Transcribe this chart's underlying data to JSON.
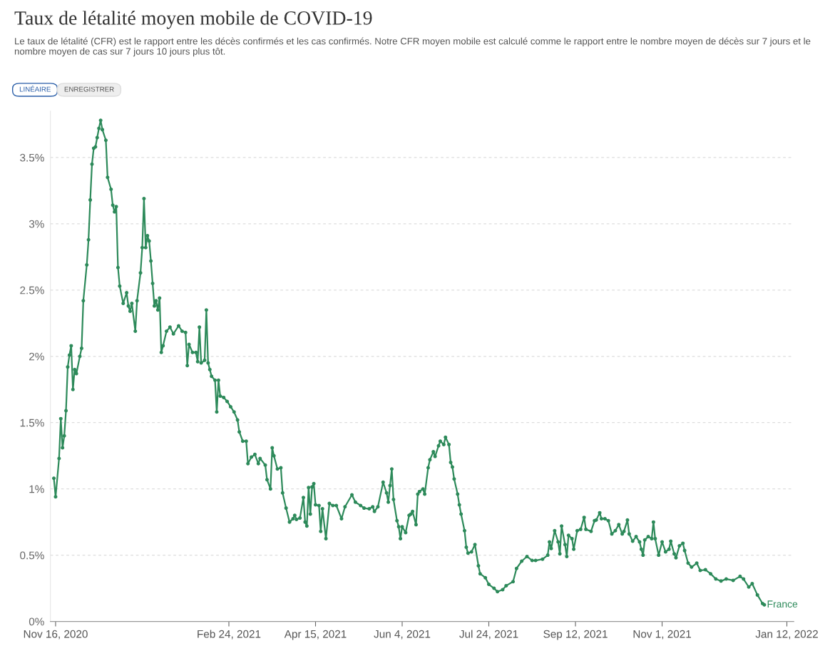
{
  "chart_data": {
    "type": "line",
    "title": "Taux de létalité moyen mobile de COVID-19",
    "subtitle": "Le taux de létalité (CFR) est le rapport entre les décès confirmés et les cas confirmés. Notre CFR moyen mobile est calculé comme le rapport entre le nombre moyen de décès sur 7 jours et le nombre moyen de cas sur 7 jours 10 jours plus tôt.",
    "annotations": [
      "LINÉAIRE",
      "ENREGISTRER"
    ],
    "xlim": [
      "2020-11-13",
      "2022-01-16"
    ],
    "xticks": [
      {
        "value": "2020-11-16",
        "label": "Nov 16, 2020"
      },
      {
        "value": "2021-02-24",
        "label": "Feb 24, 2021"
      },
      {
        "value": "2021-04-15",
        "label": "Apr 15, 2021"
      },
      {
        "value": "2021-06-04",
        "label": "Jun 4, 2021"
      },
      {
        "value": "2021-07-24",
        "label": "Jul 24, 2021"
      },
      {
        "value": "2021-09-12",
        "label": "Sep 12, 2021"
      },
      {
        "value": "2021-11-01",
        "label": "Nov 1, 2021"
      },
      {
        "value": "2022-01-12",
        "label": "Jan 12, 2022"
      }
    ],
    "ylim": [
      0,
      3.85
    ],
    "yticks": [
      {
        "value": 0,
        "label": "0%"
      },
      {
        "value": 0.5,
        "label": "0.5%"
      },
      {
        "value": 1,
        "label": "1%"
      },
      {
        "value": 1.5,
        "label": "1.5%"
      },
      {
        "value": 2,
        "label": "2%"
      },
      {
        "value": 2.5,
        "label": "2.5%"
      },
      {
        "value": 3,
        "label": "3%"
      },
      {
        "value": 3.5,
        "label": "3.5%"
      }
    ],
    "grid": "y",
    "legend": false,
    "marker": "circle",
    "line_style": "solid",
    "series": [
      {
        "name": "France",
        "color": "#2d8a5a",
        "x": [
          "2020-11-15",
          "2020-11-16",
          "2020-11-18",
          "2020-11-19",
          "2020-11-20",
          "2020-11-21",
          "2020-11-22",
          "2020-11-23",
          "2020-11-24",
          "2020-11-25",
          "2020-11-26",
          "2020-11-27",
          "2020-11-28",
          "2020-11-30",
          "2020-12-01",
          "2020-12-02",
          "2020-12-04",
          "2020-12-05",
          "2020-12-06",
          "2020-12-07",
          "2020-12-08",
          "2020-12-09",
          "2020-12-10",
          "2020-12-11",
          "2020-12-12",
          "2020-12-13",
          "2020-12-15",
          "2020-12-16",
          "2020-12-18",
          "2020-12-19",
          "2020-12-20",
          "2020-12-21",
          "2020-12-22",
          "2020-12-23",
          "2020-12-25",
          "2020-12-27",
          "2020-12-28",
          "2020-12-29",
          "2020-12-30",
          "2021-01-01",
          "2021-01-02",
          "2021-01-04",
          "2021-01-05",
          "2021-01-06",
          "2021-01-07",
          "2021-01-08",
          "2021-01-09",
          "2021-01-10",
          "2021-01-11",
          "2021-01-12",
          "2021-01-13",
          "2021-01-14",
          "2021-01-15",
          "2021-01-16",
          "2021-01-17",
          "2021-01-19",
          "2021-01-21",
          "2021-01-23",
          "2021-01-26",
          "2021-01-28",
          "2021-01-30",
          "2021-01-31",
          "2021-02-01",
          "2021-02-03",
          "2021-02-05",
          "2021-02-06",
          "2021-02-07",
          "2021-02-08",
          "2021-02-10",
          "2021-02-11",
          "2021-02-12",
          "2021-02-13",
          "2021-02-14",
          "2021-02-16",
          "2021-02-17",
          "2021-02-18",
          "2021-02-19",
          "2021-02-21",
          "2021-02-23",
          "2021-02-25",
          "2021-02-27",
          "2021-03-01",
          "2021-03-02",
          "2021-03-04",
          "2021-03-06",
          "2021-03-07",
          "2021-03-09",
          "2021-03-11",
          "2021-03-13",
          "2021-03-14",
          "2021-03-17",
          "2021-03-18",
          "2021-03-20",
          "2021-03-21",
          "2021-03-22",
          "2021-03-24",
          "2021-03-26",
          "2021-03-27",
          "2021-03-29",
          "2021-03-31",
          "2021-04-02",
          "2021-04-03",
          "2021-04-04",
          "2021-04-06",
          "2021-04-08",
          "2021-04-09",
          "2021-04-10",
          "2021-04-11",
          "2021-04-12",
          "2021-04-13",
          "2021-04-14",
          "2021-04-15",
          "2021-04-17",
          "2021-04-18",
          "2021-04-19",
          "2021-04-21",
          "2021-04-23",
          "2021-04-25",
          "2021-04-27",
          "2021-04-30",
          "2021-05-02",
          "2021-05-06",
          "2021-05-08",
          "2021-05-11",
          "2021-05-13",
          "2021-05-16",
          "2021-05-18",
          "2021-05-19",
          "2021-05-21",
          "2021-05-24",
          "2021-05-26",
          "2021-05-27",
          "2021-05-28",
          "2021-05-29",
          "2021-05-30",
          "2021-06-01",
          "2021-06-02",
          "2021-06-03",
          "2021-06-04",
          "2021-06-06",
          "2021-06-08",
          "2021-06-09",
          "2021-06-10",
          "2021-06-12",
          "2021-06-13",
          "2021-06-14",
          "2021-06-16",
          "2021-06-17",
          "2021-06-19",
          "2021-06-20",
          "2021-06-22",
          "2021-06-23",
          "2021-06-25",
          "2021-06-26",
          "2021-06-28",
          "2021-06-29",
          "2021-07-01",
          "2021-07-02",
          "2021-07-03",
          "2021-07-04",
          "2021-07-06",
          "2021-07-07",
          "2021-07-08",
          "2021-07-10",
          "2021-07-11",
          "2021-07-12",
          "2021-07-14",
          "2021-07-16",
          "2021-07-18",
          "2021-07-19",
          "2021-07-22",
          "2021-07-24",
          "2021-07-27",
          "2021-07-29",
          "2021-08-01",
          "2021-08-03",
          "2021-08-07",
          "2021-08-09",
          "2021-08-12",
          "2021-08-15",
          "2021-08-18",
          "2021-08-20",
          "2021-08-24",
          "2021-08-27",
          "2021-08-28",
          "2021-08-29",
          "2021-08-31",
          "2021-09-02",
          "2021-09-03",
          "2021-09-04",
          "2021-09-06",
          "2021-09-07",
          "2021-09-08",
          "2021-09-10",
          "2021-09-11",
          "2021-09-13",
          "2021-09-15",
          "2021-09-17",
          "2021-09-18",
          "2021-09-21",
          "2021-09-23",
          "2021-09-24",
          "2021-09-26",
          "2021-09-27",
          "2021-09-29",
          "2021-10-01",
          "2021-10-03",
          "2021-10-05",
          "2021-10-07",
          "2021-10-09",
          "2021-10-10",
          "2021-10-12",
          "2021-10-13",
          "2021-10-15",
          "2021-10-17",
          "2021-10-19",
          "2021-10-20",
          "2021-10-21",
          "2021-10-22",
          "2021-10-24",
          "2021-10-26",
          "2021-10-27",
          "2021-10-28",
          "2021-10-30",
          "2021-11-01",
          "2021-11-03",
          "2021-11-05",
          "2021-11-06",
          "2021-11-08",
          "2021-11-09",
          "2021-11-11",
          "2021-11-13",
          "2021-11-14",
          "2021-11-16",
          "2021-11-18",
          "2021-11-21",
          "2021-11-23",
          "2021-11-26",
          "2021-11-29",
          "2021-12-02",
          "2021-12-05",
          "2021-12-08",
          "2021-12-12",
          "2021-12-16",
          "2021-12-18",
          "2021-12-21",
          "2021-12-23",
          "2021-12-26",
          "2021-12-29",
          "2021-12-30"
        ],
        "values": [
          1.08,
          0.94,
          1.23,
          1.53,
          1.31,
          1.4,
          1.59,
          1.92,
          2.01,
          2.08,
          1.75,
          1.9,
          1.87,
          2.0,
          2.06,
          2.42,
          2.69,
          2.88,
          3.18,
          3.45,
          3.57,
          3.58,
          3.65,
          3.72,
          3.78,
          3.71,
          3.63,
          3.35,
          3.26,
          3.14,
          3.09,
          3.13,
          2.67,
          2.53,
          2.4,
          2.48,
          2.38,
          2.34,
          2.4,
          2.19,
          2.42,
          2.63,
          2.82,
          3.19,
          2.82,
          2.91,
          2.87,
          2.72,
          2.55,
          2.38,
          2.42,
          2.35,
          2.44,
          2.03,
          2.08,
          2.19,
          2.22,
          2.17,
          2.23,
          2.19,
          2.18,
          1.93,
          2.09,
          2.03,
          2.03,
          1.96,
          2.22,
          1.95,
          1.97,
          2.35,
          1.95,
          1.9,
          1.85,
          1.82,
          1.58,
          1.82,
          1.7,
          1.69,
          1.66,
          1.62,
          1.58,
          1.52,
          1.43,
          1.36,
          1.36,
          1.19,
          1.24,
          1.26,
          1.19,
          1.23,
          1.18,
          1.07,
          1.0,
          1.31,
          1.25,
          1.15,
          1.16,
          0.97,
          0.855,
          0.75,
          0.775,
          0.8,
          0.77,
          0.78,
          0.935,
          0.75,
          0.72,
          1.01,
          0.81,
          1.015,
          1.04,
          0.88,
          0.875,
          0.68,
          0.85,
          0.625,
          0.89,
          0.875,
          0.875,
          0.775,
          0.865,
          0.955,
          0.9,
          0.875,
          0.855,
          0.85,
          0.865,
          0.83,
          0.865,
          1.05,
          0.97,
          0.9,
          1.025,
          1.15,
          0.92,
          0.76,
          0.715,
          0.625,
          0.715,
          0.67,
          0.8,
          0.81,
          0.83,
          0.73,
          0.96,
          0.98,
          1.0,
          0.96,
          1.16,
          1.22,
          1.28,
          1.245,
          1.325,
          1.36,
          1.335,
          1.39,
          1.335,
          1.2,
          1.165,
          1.075,
          0.96,
          0.88,
          0.81,
          0.685,
          0.56,
          0.515,
          0.525,
          0.58,
          0.42,
          0.36,
          0.33,
          0.28,
          0.25,
          0.225,
          0.24,
          0.27,
          0.3,
          0.4,
          0.455,
          0.49,
          0.46,
          0.46,
          0.47,
          0.5,
          0.6,
          0.55,
          0.685,
          0.6,
          0.51,
          0.72,
          0.58,
          0.49,
          0.65,
          0.625,
          0.545,
          0.685,
          0.695,
          0.785,
          0.695,
          0.68,
          0.76,
          0.765,
          0.82,
          0.775,
          0.775,
          0.76,
          0.66,
          0.685,
          0.73,
          0.66,
          0.68,
          0.765,
          0.66,
          0.605,
          0.64,
          0.6,
          0.545,
          0.5,
          0.615,
          0.64,
          0.625,
          0.75,
          0.625,
          0.5,
          0.6,
          0.525,
          0.545,
          0.605,
          0.51,
          0.48,
          0.57,
          0.59,
          0.535,
          0.44,
          0.41,
          0.44,
          0.385,
          0.39,
          0.36,
          0.32,
          0.305,
          0.32,
          0.31,
          0.34,
          0.32,
          0.26,
          0.285,
          0.2,
          0.135,
          0.125
        ]
      }
    ]
  }
}
